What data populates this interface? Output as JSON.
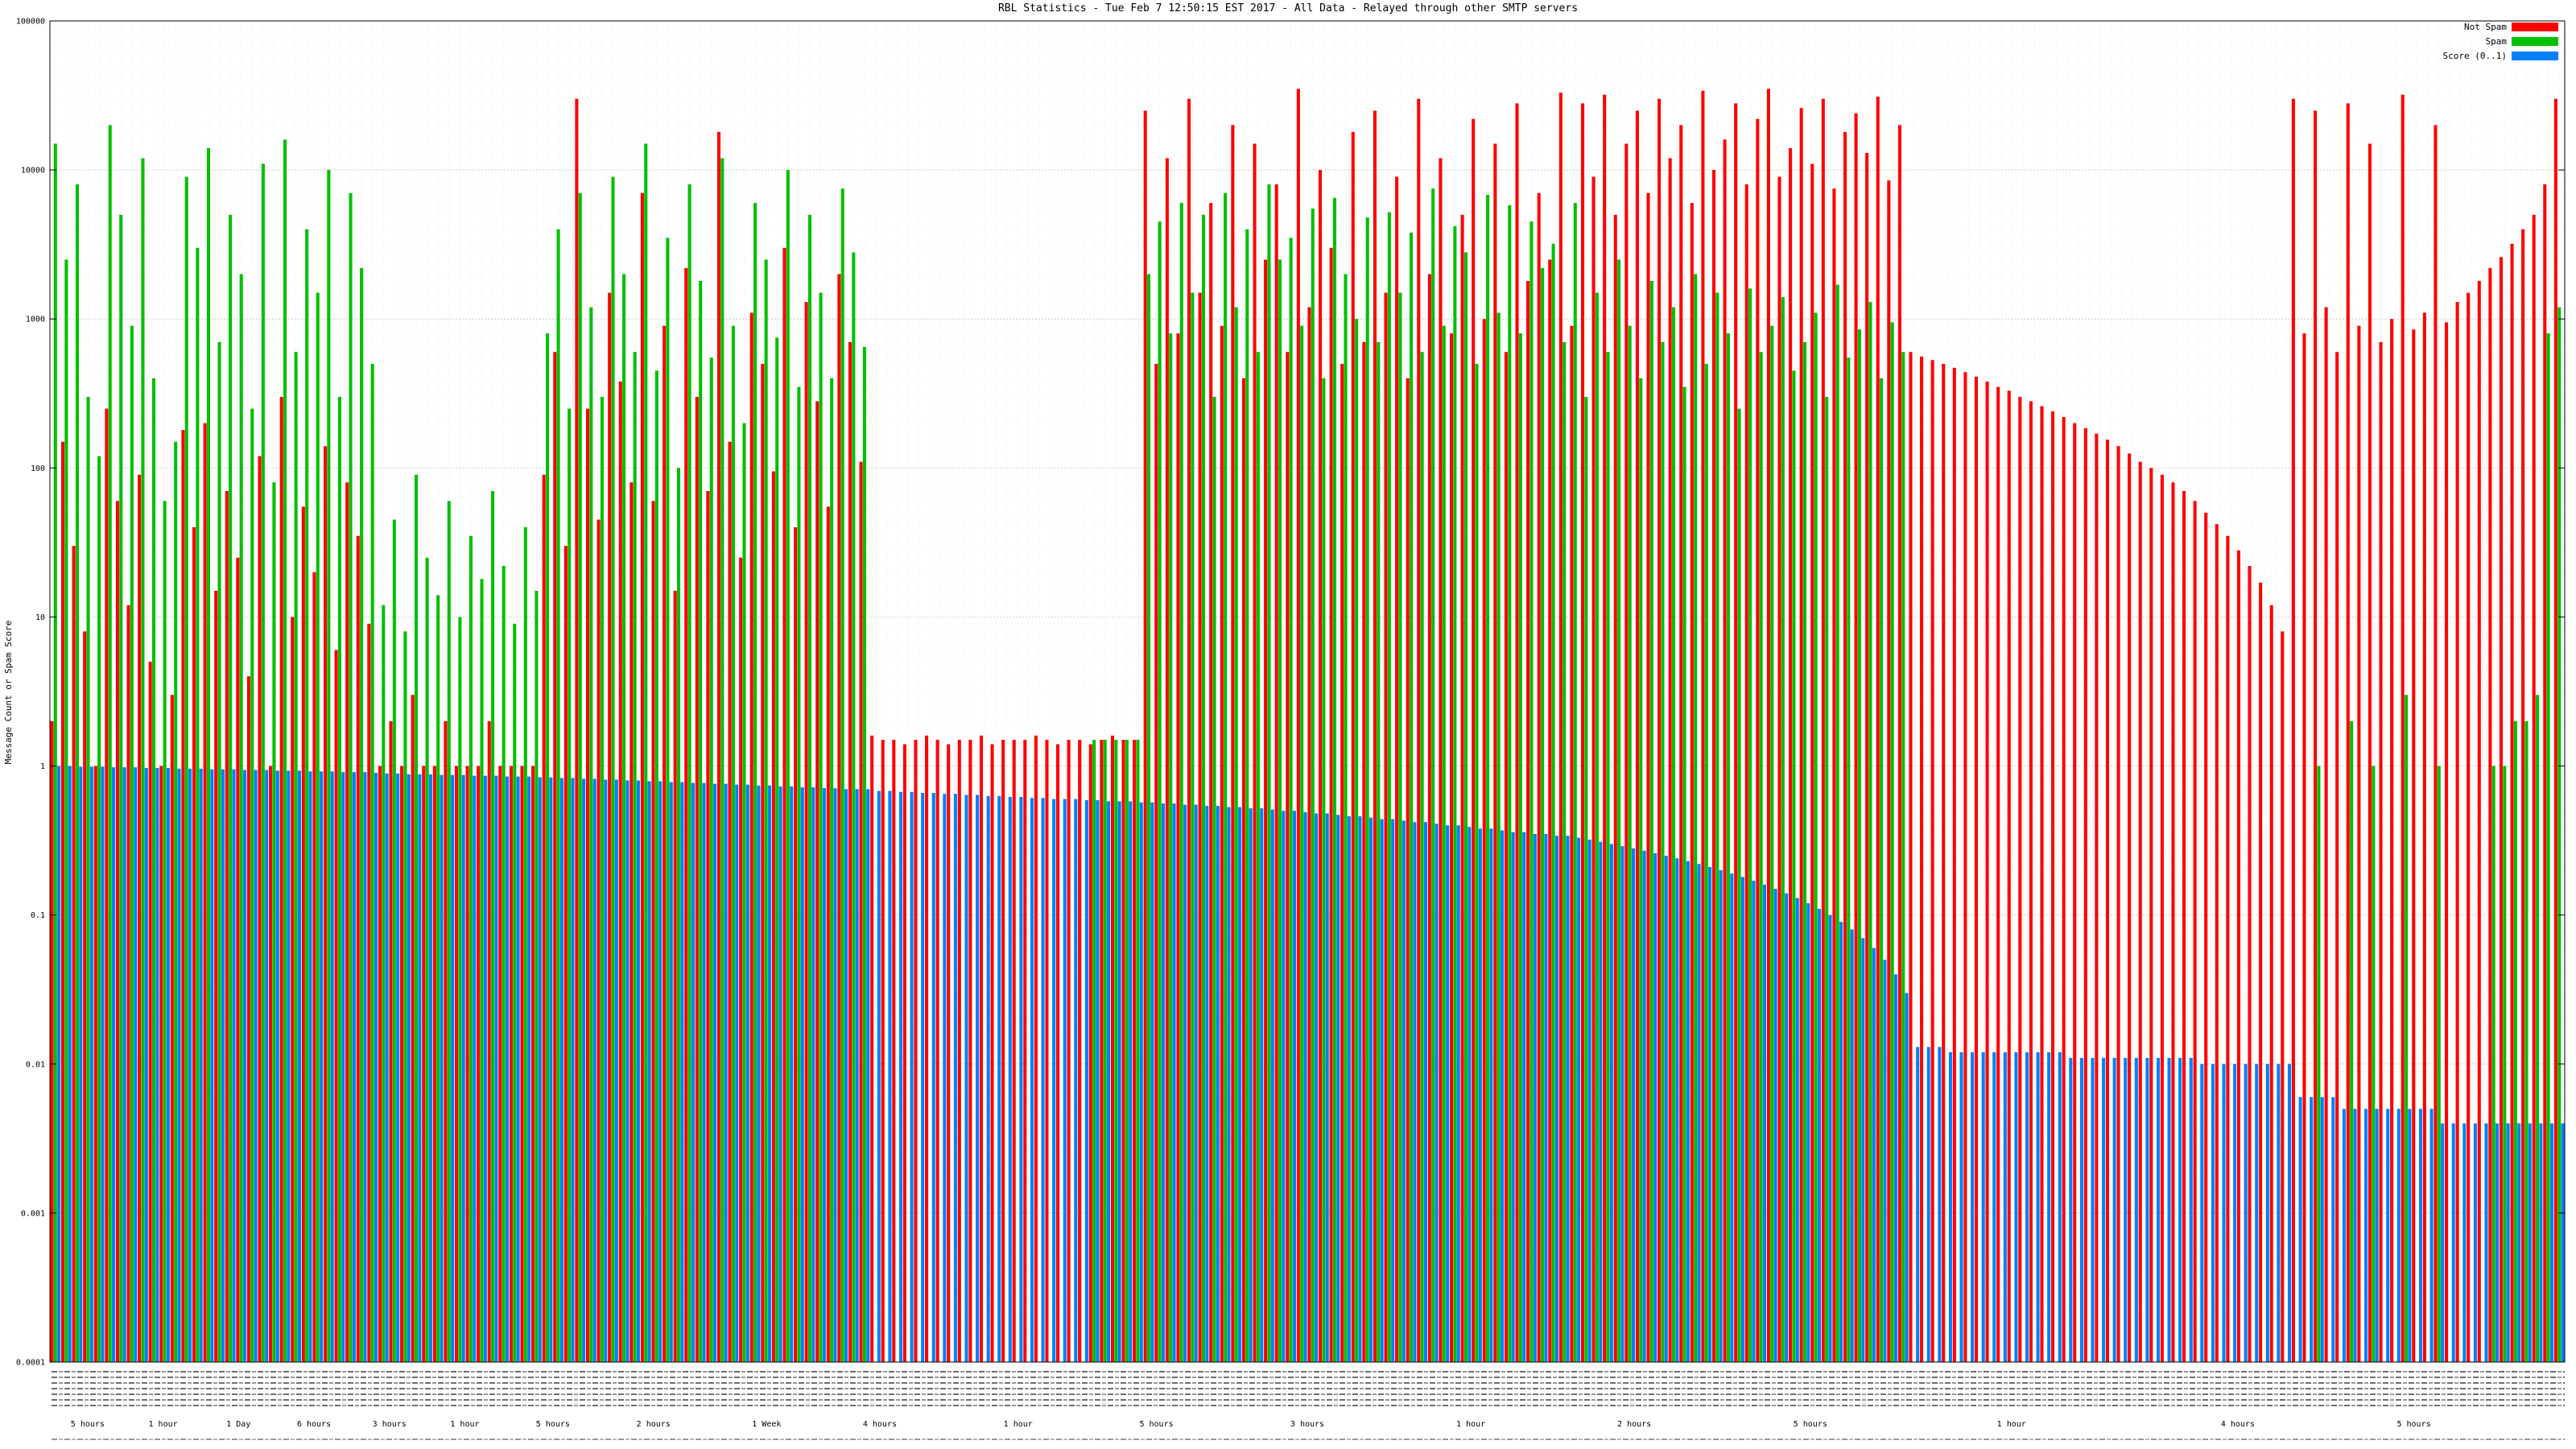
{
  "chart_data": {
    "type": "bar",
    "title": "RBL Statistics - Tue Feb  7 12:50:15 EST 2017 - All Data - Relayed through other SMTP servers",
    "xlabel": "",
    "ylabel": "Message Count or Spam Score",
    "yscale": "log",
    "ylim": [
      0.0001,
      100000
    ],
    "ytick_labels": [
      "100000",
      "10000",
      "1000",
      "100",
      "10",
      "1",
      "0.1",
      "0.01",
      "0.001",
      "0.0001"
    ],
    "grid": true,
    "legend_position": "top-right",
    "x_tick_labels_note": "x axis lists individual RBL/DNSBL hostnames, rendered too small to be legible",
    "legend": [
      {
        "label": "Not Spam",
        "color": "#ff0000"
      },
      {
        "label": "Spam",
        "color": "#00c000"
      },
      {
        "label": "Score (0..1)",
        "color": "#0080ff"
      }
    ],
    "secondary_x_labels": [
      {
        "pos": 0.015,
        "label": "5 hours"
      },
      {
        "pos": 0.045,
        "label": "1 hour"
      },
      {
        "pos": 0.075,
        "label": "1 Day"
      },
      {
        "pos": 0.105,
        "label": "6 hours"
      },
      {
        "pos": 0.135,
        "label": "3 hours"
      },
      {
        "pos": 0.165,
        "label": "1 hour"
      },
      {
        "pos": 0.2,
        "label": "5 hours"
      },
      {
        "pos": 0.24,
        "label": "2 hours"
      },
      {
        "pos": 0.285,
        "label": "1 Week"
      },
      {
        "pos": 0.33,
        "label": "4 hours"
      },
      {
        "pos": 0.385,
        "label": "1 hour"
      },
      {
        "pos": 0.44,
        "label": "5 hours"
      },
      {
        "pos": 0.5,
        "label": "3 hours"
      },
      {
        "pos": 0.565,
        "label": "1 hour"
      },
      {
        "pos": 0.63,
        "label": "2 hours"
      },
      {
        "pos": 0.7,
        "label": "5 hours"
      },
      {
        "pos": 0.78,
        "label": "1 hour"
      },
      {
        "pos": 0.87,
        "label": "4 hours"
      },
      {
        "pos": 0.94,
        "label": "5 hours"
      }
    ],
    "series": [
      {
        "name": "Not Spam",
        "color": "#ff0000",
        "values": [
          2,
          150,
          30,
          8,
          1,
          250,
          60,
          12,
          90,
          5,
          1,
          3,
          180,
          40,
          200,
          15,
          70,
          25,
          4,
          120,
          1,
          300,
          10,
          55,
          20,
          140,
          6,
          80,
          35,
          9,
          1,
          2,
          1,
          3,
          1,
          1,
          2,
          1,
          1,
          1,
          2,
          1,
          1,
          1,
          1,
          90,
          600,
          30,
          30000,
          250,
          45,
          1500,
          380,
          80,
          7000,
          60,
          900,
          15,
          2200,
          300,
          70,
          18000,
          150,
          25,
          1100,
          500,
          95,
          3000,
          40,
          1300,
          280,
          55,
          2000,
          700,
          110,
          1.6,
          1.5,
          1.5,
          1.4,
          1.5,
          1.6,
          1.5,
          1.4,
          1.5,
          1.5,
          1.6,
          1.4,
          1.5,
          1.5,
          1.5,
          1.6,
          1.5,
          1.4,
          1.5,
          1.5,
          1.4,
          1.5,
          1.6,
          1.5,
          1.5,
          25000,
          500,
          12000,
          800,
          30000,
          1500,
          6000,
          900,
          20000,
          400,
          15000,
          2500,
          8000,
          600,
          35000,
          1200,
          10000,
          3000,
          500,
          18000,
          700,
          25000,
          1500,
          9000,
          400,
          30000,
          2000,
          12000,
          800,
          5000,
          22000,
          1000,
          15000,
          600,
          28000,
          1800,
          7000,
          2500,
          33000,
          900,
          28000,
          9000,
          32000,
          5000,
          15000,
          25000,
          7000,
          30000,
          12000,
          20000,
          6000,
          34000,
          10000,
          16000,
          28000,
          8000,
          22000,
          35000,
          9000,
          14000,
          26000,
          11000,
          30000,
          7500,
          18000,
          24000,
          13000,
          31000,
          8500,
          20000,
          600,
          560,
          530,
          500,
          470,
          440,
          410,
          380,
          350,
          330,
          300,
          280,
          260,
          240,
          220,
          200,
          185,
          170,
          155,
          140,
          125,
          110,
          100,
          90,
          80,
          70,
          60,
          50,
          42,
          35,
          28,
          22,
          17,
          12,
          8,
          30000,
          800,
          25000,
          1200,
          600,
          28000,
          900,
          15000,
          700,
          1000,
          32000,
          850,
          1100,
          20000,
          950,
          1300,
          1500,
          1800,
          2200,
          2600,
          3200,
          4000,
          5000,
          8000,
          30000
        ]
      },
      {
        "name": "Spam",
        "color": "#00c000",
        "values": [
          15000,
          2500,
          8000,
          300,
          120,
          20000,
          5000,
          900,
          12000,
          400,
          60,
          150,
          9000,
          3000,
          14000,
          700,
          5000,
          2000,
          250,
          11000,
          80,
          16000,
          600,
          4000,
          1500,
          10000,
          300,
          7000,
          2200,
          500,
          12,
          45,
          8,
          90,
          25,
          14,
          60,
          10,
          35,
          18,
          70,
          22,
          9,
          40,
          15,
          800,
          4000,
          250,
          7000,
          1200,
          300,
          9000,
          2000,
          600,
          15000,
          450,
          3500,
          100,
          8000,
          1800,
          550,
          12000,
          900,
          200,
          6000,
          2500,
          750,
          10000,
          350,
          5000,
          1500,
          400,
          7500,
          2800,
          650,
          0,
          0,
          0,
          0,
          0,
          0,
          0,
          0,
          0,
          0,
          0,
          0,
          0,
          0,
          0,
          0,
          0,
          0,
          0,
          0,
          1.5,
          1.5,
          1.5,
          1.5,
          1.5,
          2000,
          4500,
          800,
          6000,
          1500,
          5000,
          300,
          7000,
          1200,
          4000,
          600,
          8000,
          2500,
          3500,
          900,
          5500,
          400,
          6500,
          2000,
          1000,
          4800,
          700,
          5200,
          1500,
          3800,
          600,
          7500,
          900,
          4200,
          2800,
          500,
          6800,
          1100,
          5800,
          800,
          4500,
          2200,
          3200,
          700,
          6000,
          300,
          1500,
          600,
          2500,
          900,
          400,
          1800,
          700,
          1200,
          350,
          2000,
          500,
          1500,
          800,
          250,
          1600,
          600,
          900,
          1400,
          450,
          700,
          1100,
          300,
          1700,
          550,
          850,
          1300,
          400,
          950,
          600,
          0,
          0,
          0,
          0,
          0,
          0,
          0,
          0,
          0,
          0,
          0,
          0,
          0,
          0,
          0,
          0,
          0,
          0,
          0,
          0,
          0,
          0,
          0,
          0,
          0,
          0,
          0,
          0,
          0,
          0,
          0,
          0,
          0,
          0,
          0,
          0,
          0,
          1,
          0,
          0,
          2,
          0,
          1,
          0,
          0,
          3,
          0,
          0,
          1,
          0,
          0,
          0,
          0,
          1,
          1,
          2,
          2,
          3,
          800,
          1200
        ]
      },
      {
        "name": "Score (0..1)",
        "color": "#0080ff",
        "values": [
          1.0,
          1.0,
          0.99,
          0.99,
          0.99,
          0.98,
          0.98,
          0.98,
          0.97,
          0.97,
          0.97,
          0.96,
          0.96,
          0.96,
          0.95,
          0.95,
          0.95,
          0.94,
          0.94,
          0.94,
          0.93,
          0.93,
          0.93,
          0.92,
          0.92,
          0.92,
          0.91,
          0.91,
          0.91,
          0.9,
          0.89,
          0.89,
          0.88,
          0.88,
          0.88,
          0.87,
          0.87,
          0.87,
          0.86,
          0.86,
          0.86,
          0.85,
          0.85,
          0.85,
          0.84,
          0.84,
          0.83,
          0.83,
          0.82,
          0.82,
          0.81,
          0.81,
          0.8,
          0.8,
          0.79,
          0.79,
          0.78,
          0.78,
          0.77,
          0.77,
          0.76,
          0.76,
          0.75,
          0.75,
          0.74,
          0.74,
          0.73,
          0.73,
          0.72,
          0.72,
          0.71,
          0.71,
          0.7,
          0.7,
          0.7,
          0.68,
          0.68,
          0.67,
          0.67,
          0.66,
          0.66,
          0.65,
          0.65,
          0.64,
          0.64,
          0.63,
          0.63,
          0.62,
          0.62,
          0.61,
          0.61,
          0.6,
          0.6,
          0.6,
          0.59,
          0.59,
          0.58,
          0.58,
          0.58,
          0.57,
          0.57,
          0.56,
          0.56,
          0.55,
          0.55,
          0.54,
          0.54,
          0.53,
          0.53,
          0.52,
          0.52,
          0.51,
          0.5,
          0.5,
          0.49,
          0.48,
          0.48,
          0.47,
          0.46,
          0.46,
          0.45,
          0.44,
          0.44,
          0.43,
          0.42,
          0.42,
          0.41,
          0.4,
          0.4,
          0.39,
          0.38,
          0.38,
          0.37,
          0.36,
          0.36,
          0.35,
          0.35,
          0.34,
          0.34,
          0.33,
          0.32,
          0.31,
          0.3,
          0.29,
          0.28,
          0.27,
          0.26,
          0.25,
          0.24,
          0.23,
          0.22,
          0.21,
          0.2,
          0.19,
          0.18,
          0.17,
          0.16,
          0.15,
          0.14,
          0.13,
          0.12,
          0.11,
          0.1,
          0.09,
          0.08,
          0.07,
          0.06,
          0.05,
          0.04,
          0.03,
          0.013,
          0.013,
          0.013,
          0.012,
          0.012,
          0.012,
          0.012,
          0.012,
          0.012,
          0.012,
          0.012,
          0.012,
          0.012,
          0.012,
          0.011,
          0.011,
          0.011,
          0.011,
          0.011,
          0.011,
          0.011,
          0.011,
          0.011,
          0.011,
          0.011,
          0.011,
          0.01,
          0.01,
          0.01,
          0.01,
          0.01,
          0.01,
          0.01,
          0.01,
          0.01,
          0.006,
          0.006,
          0.006,
          0.006,
          0.005,
          0.005,
          0.005,
          0.005,
          0.005,
          0.005,
          0.005,
          0.005,
          0.005,
          0.004,
          0.004,
          0.004,
          0.004,
          0.004,
          0.004,
          0.004,
          0.004,
          0.004,
          0.004,
          0.004,
          0.004
        ]
      }
    ]
  }
}
